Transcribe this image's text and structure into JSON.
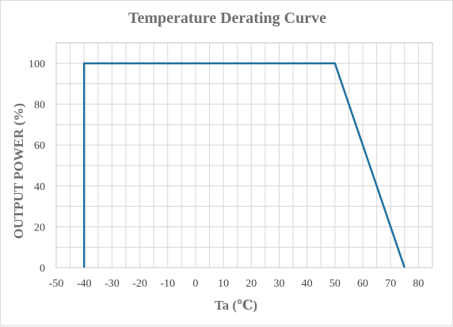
{
  "chart_data": {
    "type": "line",
    "title": "Temperature Derating Curve",
    "xlabel": "Ta (℃)",
    "ylabel": "OUTPUT POWER (%)",
    "xlim": [
      -50,
      85
    ],
    "ylim": [
      0,
      100
    ],
    "x_ticks": [
      -50,
      -40,
      -30,
      -20,
      -10,
      0,
      10,
      20,
      30,
      40,
      50,
      60,
      70,
      80
    ],
    "y_ticks": [
      0,
      20,
      40,
      60,
      80,
      100
    ],
    "grid": true,
    "series": [
      {
        "color": "#1f6f9f",
        "x": [
          -40,
          -40,
          50,
          75
        ],
        "y": [
          0,
          100,
          100,
          0
        ]
      }
    ]
  }
}
